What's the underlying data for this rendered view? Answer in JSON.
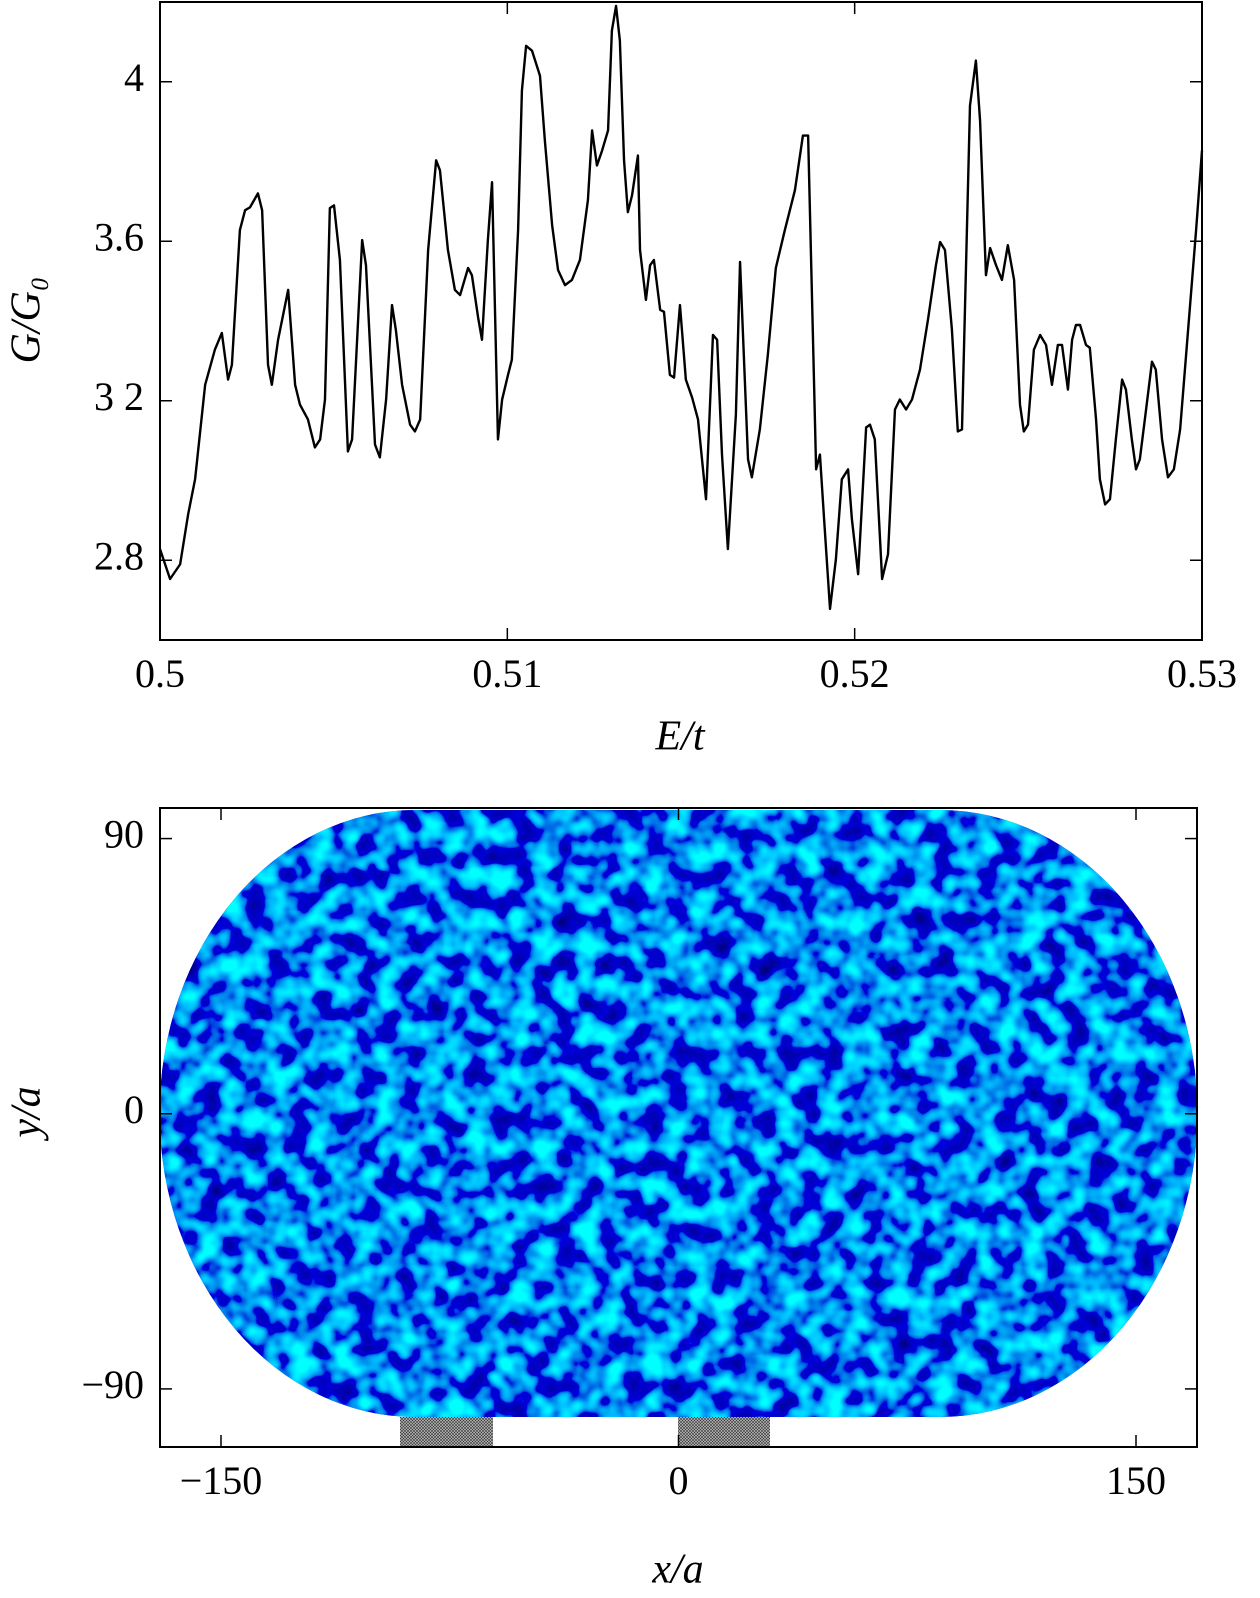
{
  "chart_data": [
    {
      "type": "line",
      "xlabel": "E/t",
      "ylabel": "G/G₀",
      "color": "#000000",
      "xlim": [
        0.5,
        0.53
      ],
      "xticks": [
        0.5,
        0.51,
        0.52,
        0.53
      ],
      "ylim": [
        2.6,
        4.2
      ],
      "yticks": [
        2.8,
        {
          "value": 3.2,
          "label": "3 2"
        },
        3.6,
        4
      ],
      "x": [
        0.5,
        0.50029,
        0.50058,
        0.50081,
        0.50101,
        0.5013,
        0.50158,
        0.50178,
        0.50196,
        0.50207,
        0.5023,
        0.50245,
        0.50259,
        0.50282,
        0.50294,
        0.50311,
        0.50322,
        0.5034,
        0.50369,
        0.50389,
        0.50403,
        0.50426,
        0.50446,
        0.50461,
        0.50475,
        0.50489,
        0.50501,
        0.50518,
        0.50541,
        0.50553,
        0.50582,
        0.50593,
        0.50619,
        0.50633,
        0.50651,
        0.50668,
        0.50679,
        0.50697,
        0.5072,
        0.50734,
        0.50749,
        0.50772,
        0.50795,
        0.50806,
        0.50829,
        0.50849,
        0.50864,
        0.50887,
        0.50898,
        0.50916,
        0.50927,
        0.50944,
        0.50956,
        0.50973,
        0.50985,
        0.51002,
        0.51013,
        0.51031,
        0.51042,
        0.51054,
        0.51071,
        0.51094,
        0.51108,
        0.51129,
        0.51146,
        0.51166,
        0.51186,
        0.51209,
        0.51232,
        0.51244,
        0.51258,
        0.51273,
        0.5129,
        0.51301,
        0.51313,
        0.51324,
        0.51336,
        0.51347,
        0.51359,
        0.51376,
        0.51382,
        0.51399,
        0.51411,
        0.51422,
        0.5144,
        0.51451,
        0.51468,
        0.5148,
        0.51497,
        0.51514,
        0.51532,
        0.51549,
        0.51572,
        0.51592,
        0.51604,
        0.51618,
        0.51635,
        0.51658,
        0.5167,
        0.51693,
        0.51704,
        0.51727,
        0.5175,
        0.51773,
        0.51799,
        0.51828,
        0.51851,
        0.51866,
        0.51889,
        0.519,
        0.51912,
        0.51929,
        0.51946,
        0.51963,
        0.51981,
        0.51992,
        0.5201,
        0.52033,
        0.52044,
        0.52058,
        0.52079,
        0.52096,
        0.52116,
        0.5213,
        0.52148,
        0.52165,
        0.52188,
        0.52211,
        0.52234,
        0.52246,
        0.5226,
        0.5228,
        0.52297,
        0.52309,
        0.52332,
        0.52349,
        0.52361,
        0.52378,
        0.5239,
        0.52407,
        0.52424,
        0.52441,
        0.52459,
        0.52476,
        0.52487,
        0.52499,
        0.52516,
        0.52534,
        0.52551,
        0.52568,
        0.52585,
        0.52597,
        0.52614,
        0.52626,
        0.52637,
        0.52649,
        0.52666,
        0.52677,
        0.52695,
        0.52706,
        0.52721,
        0.52735,
        0.52752,
        0.5277,
        0.52781,
        0.52798,
        0.5281,
        0.52821,
        0.52839,
        0.52856,
        0.52867,
        0.52885,
        0.52902,
        0.52919,
        0.52937,
        0.5296,
        0.52983,
        0.53
      ],
      "values": [
        2.828,
        2.753,
        2.79,
        2.915,
        3.003,
        3.24,
        3.328,
        3.37,
        3.253,
        3.29,
        3.628,
        3.678,
        3.685,
        3.72,
        3.678,
        3.29,
        3.24,
        3.353,
        3.478,
        3.24,
        3.19,
        3.153,
        3.083,
        3.103,
        3.203,
        3.683,
        3.69,
        3.553,
        3.073,
        3.103,
        3.603,
        3.54,
        3.09,
        3.058,
        3.203,
        3.44,
        3.378,
        3.24,
        3.14,
        3.123,
        3.153,
        3.578,
        3.803,
        3.778,
        3.578,
        3.478,
        3.465,
        3.533,
        3.515,
        3.408,
        3.353,
        3.603,
        3.748,
        3.103,
        3.203,
        3.265,
        3.303,
        3.628,
        3.978,
        4.09,
        4.078,
        4.015,
        3.853,
        3.64,
        3.528,
        3.49,
        3.503,
        3.553,
        3.703,
        3.878,
        3.79,
        3.828,
        3.878,
        4.128,
        4.19,
        4.103,
        3.803,
        3.673,
        3.715,
        3.815,
        3.578,
        3.453,
        3.54,
        3.553,
        3.428,
        3.423,
        3.265,
        3.258,
        3.44,
        3.253,
        3.208,
        3.153,
        2.953,
        3.365,
        3.353,
        3.065,
        2.828,
        3.165,
        3.548,
        3.053,
        3.008,
        3.128,
        3.315,
        3.533,
        3.628,
        3.728,
        3.865,
        3.865,
        3.028,
        3.065,
        2.903,
        2.678,
        2.803,
        3.003,
        3.028,
        2.903,
        2.765,
        3.133,
        3.14,
        3.103,
        2.753,
        2.815,
        3.178,
        3.203,
        3.178,
        3.203,
        3.278,
        3.403,
        3.54,
        3.598,
        3.578,
        3.378,
        3.123,
        3.128,
        3.94,
        4.053,
        3.903,
        3.515,
        3.583,
        3.54,
        3.503,
        3.59,
        3.503,
        3.19,
        3.123,
        3.14,
        3.328,
        3.365,
        3.34,
        3.24,
        3.34,
        3.34,
        3.228,
        3.353,
        3.39,
        3.39,
        3.34,
        3.333,
        3.153,
        3.003,
        2.94,
        2.953,
        3.103,
        3.253,
        3.228,
        3.103,
        3.028,
        3.053,
        3.178,
        3.298,
        3.278,
        3.103,
        3.008,
        3.028,
        3.128,
        3.378,
        3.628,
        3.828
      ]
    },
    {
      "type": "heatmap",
      "xlabel": "x/a",
      "ylabel": "y/a",
      "xlim": [
        -170,
        170
      ],
      "xticks": [
        {
          "value": -150,
          "label": "−150"
        },
        0,
        150
      ],
      "ylim": [
        -109,
        100
      ],
      "yticks": [
        {
          "value": -90,
          "label": "−90"
        },
        0,
        90
      ]
    }
  ]
}
